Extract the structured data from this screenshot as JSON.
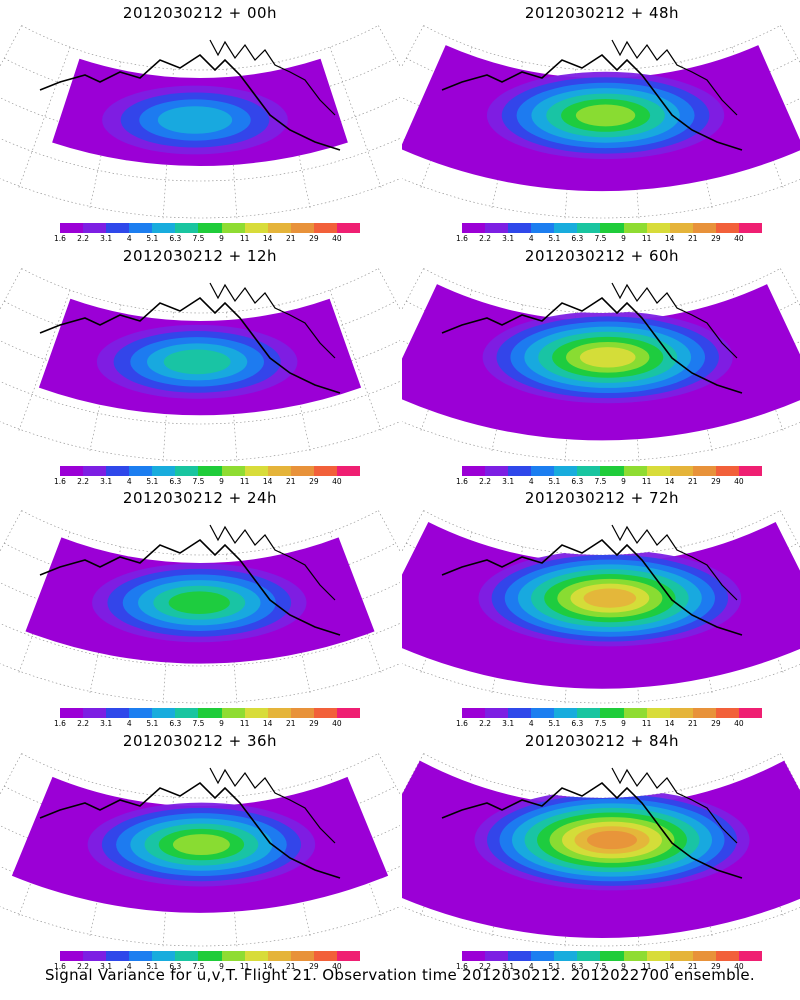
{
  "caption": "Signal Variance for u,v,T. Flight 21. Observation time 2012030212. 2012022700 ensemble.",
  "colorbar": {
    "colors": [
      "#9b00d6",
      "#7d1fe3",
      "#2f48ea",
      "#1c7ef0",
      "#18acdd",
      "#19c5a0",
      "#1fcc3a",
      "#8fdc32",
      "#d8dc3a",
      "#e5b43a",
      "#e8923a",
      "#f2603a",
      "#ef1f72"
    ],
    "labels": [
      "1.6",
      "2.2",
      "3.1",
      "4",
      "5.1",
      "6.3",
      "7.5",
      "9",
      "11",
      "14",
      "21",
      "29",
      "40"
    ]
  },
  "panels": [
    {
      "title": "2012030212 + 00h",
      "lead_hours": 0
    },
    {
      "title": "2012030212 + 48h",
      "lead_hours": 48
    },
    {
      "title": "2012030212 + 12h",
      "lead_hours": 12
    },
    {
      "title": "2012030212 + 60h",
      "lead_hours": 60
    },
    {
      "title": "2012030212 + 24h",
      "lead_hours": 24
    },
    {
      "title": "2012030212 + 72h",
      "lead_hours": 72
    },
    {
      "title": "2012030212 + 36h",
      "lead_hours": 36
    },
    {
      "title": "2012030212 + 84h",
      "lead_hours": 84
    }
  ]
}
